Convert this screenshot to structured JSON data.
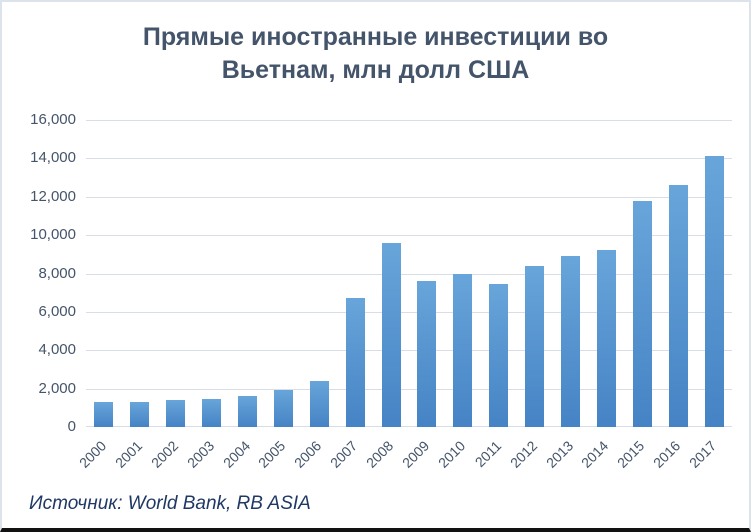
{
  "title_lines": [
    "Прямые иностранные инвестиции во",
    "Вьетнам, млн долл США"
  ],
  "source": "Источник: World Bank, RB ASIA",
  "colors": {
    "title_text": "#44546A",
    "axis_label_text": "#44546A",
    "bar_gradient_top": "#68A5DA",
    "bar_gradient_bottom": "#4583C5",
    "gridline": "#D8DDE6",
    "source_text": "#1F3864",
    "frame_border": "#DDE3EB",
    "frame_bottom_border": "#121212",
    "background": "#FFFFFF"
  },
  "chart_data": {
    "type": "bar",
    "title": "Прямые иностранные инвестиции во Вьетнам, млн долл США",
    "categories": [
      "2000",
      "2001",
      "2002",
      "2003",
      "2004",
      "2005",
      "2006",
      "2007",
      "2008",
      "2009",
      "2010",
      "2011",
      "2012",
      "2013",
      "2014",
      "2015",
      "2016",
      "2017"
    ],
    "values": [
      1298,
      1300,
      1400,
      1450,
      1610,
      1954,
      2400,
      6700,
      9579,
      7600,
      8000,
      7430,
      8368,
      8900,
      9200,
      11800,
      12600,
      14100
    ],
    "xlabel": "",
    "ylabel": "",
    "ylim": [
      0,
      16000
    ],
    "ytick_interval": 2000,
    "ytick_labels": [
      "0",
      "2,000",
      "4,000",
      "6,000",
      "8,000",
      "10,000",
      "12,000",
      "14,000",
      "16,000"
    ],
    "grid": true,
    "legend": false,
    "series_color": "#5B9BD5"
  }
}
